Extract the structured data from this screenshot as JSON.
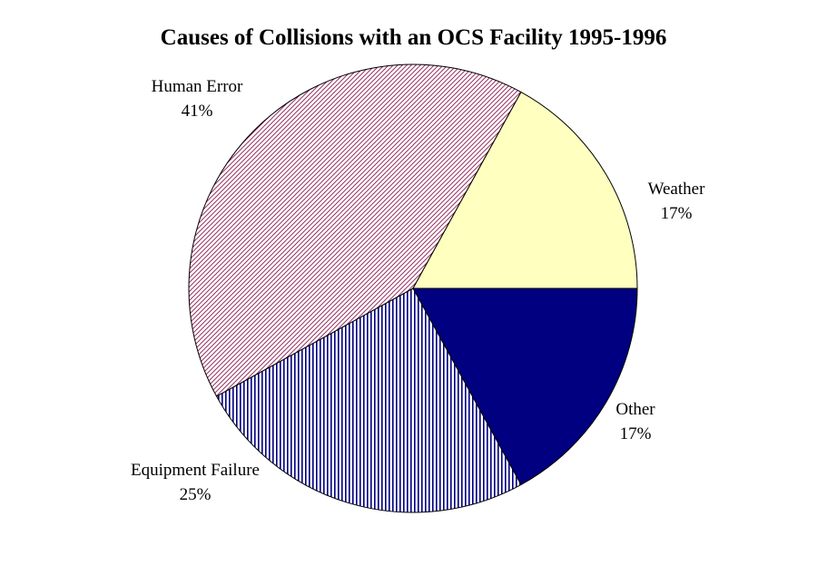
{
  "chart_data": {
    "type": "pie",
    "title": "Causes of Collisions with an OCS Facility 1995-1996",
    "start_angle_deg": 0,
    "direction": "clockwise",
    "slices": [
      {
        "name": "Other",
        "value": 17,
        "label": "Other",
        "pct_label": "17%",
        "color": "#000080",
        "pattern": "solid"
      },
      {
        "name": "Equipment Failure",
        "value": 25,
        "label": "Equipment Failure",
        "pct_label": "25%",
        "color": "#000080",
        "pattern": "vertical-lines"
      },
      {
        "name": "Human Error",
        "value": 41,
        "label": "Human Error",
        "pct_label": "41%",
        "color": "#993366",
        "pattern": "diagonal-lines"
      },
      {
        "name": "Weather",
        "value": 17,
        "label": "Weather",
        "pct_label": "17%",
        "color": "#FFFFC0",
        "pattern": "solid"
      }
    ]
  }
}
